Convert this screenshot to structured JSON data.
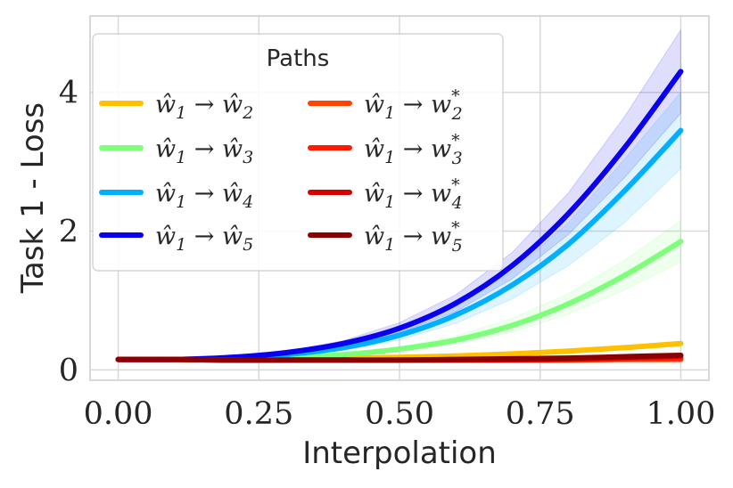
{
  "chart_data": {
    "type": "line",
    "xlabel": "Interpolation",
    "ylabel": "Task 1 - Loss",
    "xlim": [
      -0.05,
      1.05
    ],
    "ylim": [
      -0.15,
      5.1
    ],
    "xticks": [
      0.0,
      0.25,
      0.5,
      0.75,
      1.0
    ],
    "xtick_labels": [
      "0.00",
      "0.25",
      "0.50",
      "0.75",
      "1.00"
    ],
    "yticks": [
      0,
      2,
      4
    ],
    "ytick_labels": [
      "0",
      "2",
      "4"
    ],
    "grid": true,
    "legend": {
      "title": "Paths",
      "placement": "top-left",
      "columns": 2
    },
    "series": [
      {
        "name": "ŵ1 → ŵ2",
        "label_main": "ŵ",
        "label_sub1": "1",
        "label_arrow": "→",
        "label_target": "ŵ",
        "label_sub2": "2",
        "label_sup": "",
        "color": "#ffc000",
        "band": false,
        "x": [
          0,
          0.1,
          0.2,
          0.3,
          0.4,
          0.5,
          0.6,
          0.7,
          0.8,
          0.9,
          1.0
        ],
        "y": [
          0.15,
          0.15,
          0.15,
          0.16,
          0.17,
          0.18,
          0.2,
          0.23,
          0.27,
          0.32,
          0.38
        ]
      },
      {
        "name": "ŵ1 → ŵ3",
        "label_main": "ŵ",
        "label_sub1": "1",
        "label_arrow": "→",
        "label_target": "ŵ",
        "label_sub2": "3",
        "label_sup": "",
        "color": "#7dff7a",
        "band": true,
        "x": [
          0,
          0.1,
          0.2,
          0.3,
          0.4,
          0.5,
          0.6,
          0.7,
          0.8,
          0.9,
          1.0
        ],
        "y": [
          0.15,
          0.15,
          0.16,
          0.18,
          0.22,
          0.3,
          0.43,
          0.64,
          0.95,
          1.36,
          1.85
        ],
        "lower": [
          0.15,
          0.15,
          0.16,
          0.17,
          0.2,
          0.27,
          0.37,
          0.54,
          0.8,
          1.15,
          1.55
        ],
        "upper": [
          0.15,
          0.15,
          0.17,
          0.19,
          0.24,
          0.33,
          0.49,
          0.74,
          1.1,
          1.58,
          2.15
        ]
      },
      {
        "name": "ŵ1 → ŵ4",
        "label_main": "ŵ",
        "label_sub1": "1",
        "label_arrow": "→",
        "label_target": "ŵ",
        "label_sub2": "4",
        "label_sup": "",
        "color": "#00b0ff",
        "band": true,
        "x": [
          0,
          0.1,
          0.2,
          0.3,
          0.4,
          0.5,
          0.6,
          0.7,
          0.8,
          0.9,
          1.0
        ],
        "y": [
          0.15,
          0.15,
          0.17,
          0.22,
          0.32,
          0.5,
          0.79,
          1.22,
          1.81,
          2.58,
          3.45
        ],
        "lower": [
          0.15,
          0.15,
          0.16,
          0.2,
          0.28,
          0.43,
          0.67,
          1.02,
          1.5,
          2.12,
          2.9
        ],
        "upper": [
          0.15,
          0.15,
          0.18,
          0.24,
          0.36,
          0.57,
          0.91,
          1.42,
          2.12,
          3.04,
          4.0
        ]
      },
      {
        "name": "ŵ1 → ŵ5",
        "label_main": "ŵ",
        "label_sub1": "1",
        "label_arrow": "→",
        "label_target": "ŵ",
        "label_sub2": "5",
        "label_sup": "",
        "color": "#0a00f0",
        "band": true,
        "x": [
          0,
          0.1,
          0.2,
          0.3,
          0.4,
          0.5,
          0.6,
          0.7,
          0.8,
          0.9,
          1.0
        ],
        "y": [
          0.15,
          0.15,
          0.18,
          0.25,
          0.38,
          0.6,
          0.96,
          1.5,
          2.25,
          3.2,
          4.3
        ],
        "lower": [
          0.15,
          0.15,
          0.17,
          0.23,
          0.34,
          0.53,
          0.84,
          1.31,
          1.95,
          2.77,
          3.7
        ],
        "upper": [
          0.15,
          0.15,
          0.19,
          0.27,
          0.42,
          0.68,
          1.08,
          1.69,
          2.55,
          3.65,
          4.9
        ]
      },
      {
        "name": "ŵ1 → w2*",
        "label_main": "ŵ",
        "label_sub1": "1",
        "label_arrow": "→",
        "label_target": "w",
        "label_sub2": "2",
        "label_sup": "*",
        "color": "#ff4500",
        "band": false,
        "x": [
          0,
          0.1,
          0.2,
          0.3,
          0.4,
          0.5,
          0.6,
          0.7,
          0.8,
          0.9,
          1.0
        ],
        "y": [
          0.15,
          0.15,
          0.14,
          0.14,
          0.14,
          0.14,
          0.14,
          0.14,
          0.14,
          0.15,
          0.15
        ]
      },
      {
        "name": "ŵ1 → w3*",
        "label_main": "ŵ",
        "label_sub1": "1",
        "label_arrow": "→",
        "label_target": "w",
        "label_sub2": "3",
        "label_sup": "*",
        "color": "#ff1a00",
        "band": false,
        "x": [
          0,
          0.1,
          0.2,
          0.3,
          0.4,
          0.5,
          0.6,
          0.7,
          0.8,
          0.9,
          1.0
        ],
        "y": [
          0.15,
          0.15,
          0.14,
          0.14,
          0.14,
          0.14,
          0.14,
          0.14,
          0.15,
          0.16,
          0.17
        ]
      },
      {
        "name": "ŵ1 → w4*",
        "label_main": "ŵ",
        "label_sub1": "1",
        "label_arrow": "→",
        "label_target": "w",
        "label_sub2": "4",
        "label_sup": "*",
        "color": "#d40000",
        "band": false,
        "x": [
          0,
          0.1,
          0.2,
          0.3,
          0.4,
          0.5,
          0.6,
          0.7,
          0.8,
          0.9,
          1.0
        ],
        "y": [
          0.15,
          0.15,
          0.14,
          0.14,
          0.14,
          0.14,
          0.14,
          0.15,
          0.16,
          0.18,
          0.2
        ]
      },
      {
        "name": "ŵ1 → w5*",
        "label_main": "ŵ",
        "label_sub1": "1",
        "label_arrow": "→",
        "label_target": "w",
        "label_sub2": "5",
        "label_sup": "*",
        "color": "#8b0000",
        "band": false,
        "x": [
          0,
          0.1,
          0.2,
          0.3,
          0.4,
          0.5,
          0.6,
          0.7,
          0.8,
          0.9,
          1.0
        ],
        "y": [
          0.15,
          0.15,
          0.14,
          0.14,
          0.14,
          0.14,
          0.15,
          0.16,
          0.17,
          0.19,
          0.21
        ]
      }
    ]
  }
}
